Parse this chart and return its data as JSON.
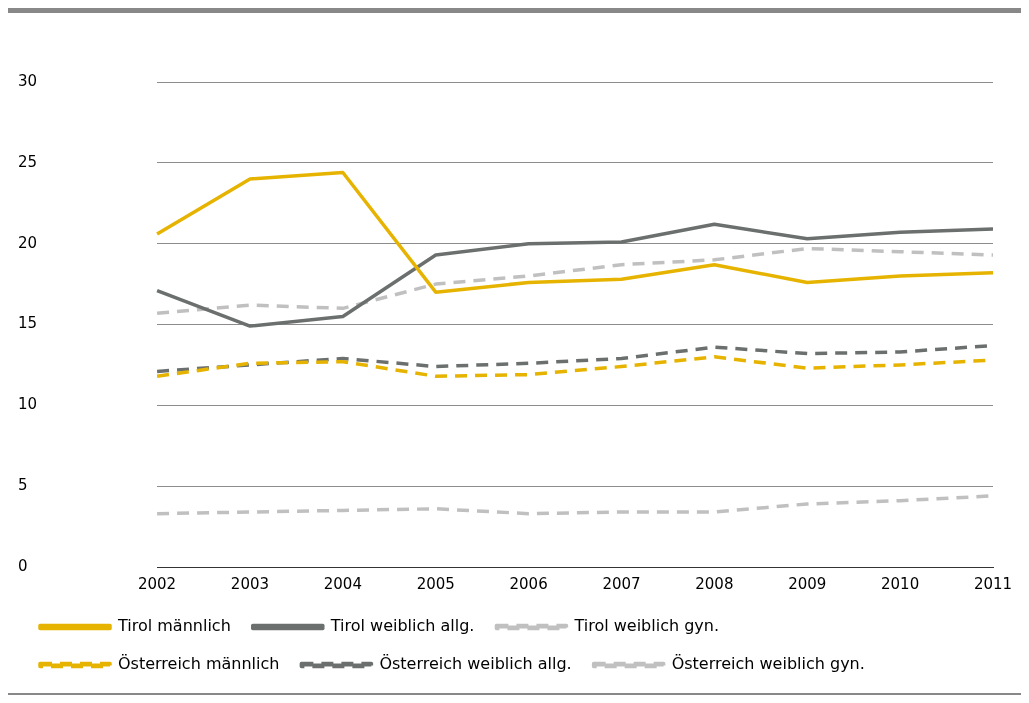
{
  "chart_data": {
    "type": "line",
    "categories": [
      "2002",
      "2003",
      "2004",
      "2005",
      "2006",
      "2007",
      "2008",
      "2009",
      "2010",
      "2011"
    ],
    "series": [
      {
        "name": "Tirol männlich",
        "color": "#e6b400",
        "line_style": "solid",
        "values": [
          20.6,
          24.0,
          24.4,
          17.0,
          17.6,
          17.8,
          18.7,
          17.6,
          18.0,
          18.2
        ]
      },
      {
        "name": "Tirol weiblich allg.",
        "color": "#6b706e",
        "line_style": "solid",
        "values": [
          17.1,
          14.9,
          15.5,
          19.3,
          20.0,
          20.1,
          21.2,
          20.3,
          20.7,
          20.9
        ]
      },
      {
        "name": "Tirol weiblich gyn.",
        "color": "#c0c0c0",
        "line_style": "dashed",
        "values": [
          15.7,
          16.2,
          16.0,
          17.5,
          18.0,
          18.7,
          19.0,
          19.7,
          19.5,
          19.3
        ]
      },
      {
        "name": "Österreich männlich",
        "color": "#e6b400",
        "line_style": "dashed",
        "values": [
          11.8,
          12.6,
          12.7,
          11.8,
          11.9,
          12.4,
          13.0,
          12.3,
          12.5,
          12.8
        ]
      },
      {
        "name": "Österreich weiblich allg.",
        "color": "#6b706e",
        "line_style": "dashed",
        "values": [
          12.1,
          12.5,
          12.9,
          12.4,
          12.6,
          12.9,
          13.6,
          13.2,
          13.3,
          13.7
        ]
      },
      {
        "name": "Österreich weiblich gyn.",
        "color": "#c0c0c0",
        "line_style": "dashed",
        "values": [
          3.3,
          3.4,
          3.5,
          3.6,
          3.3,
          3.4,
          3.4,
          3.9,
          4.1,
          4.4
        ]
      }
    ],
    "ylim": [
      0,
      30
    ],
    "yticks": [
      0,
      5,
      10,
      15,
      20,
      25,
      30
    ],
    "grid": "y",
    "legend": "bottom",
    "marker": "none"
  }
}
